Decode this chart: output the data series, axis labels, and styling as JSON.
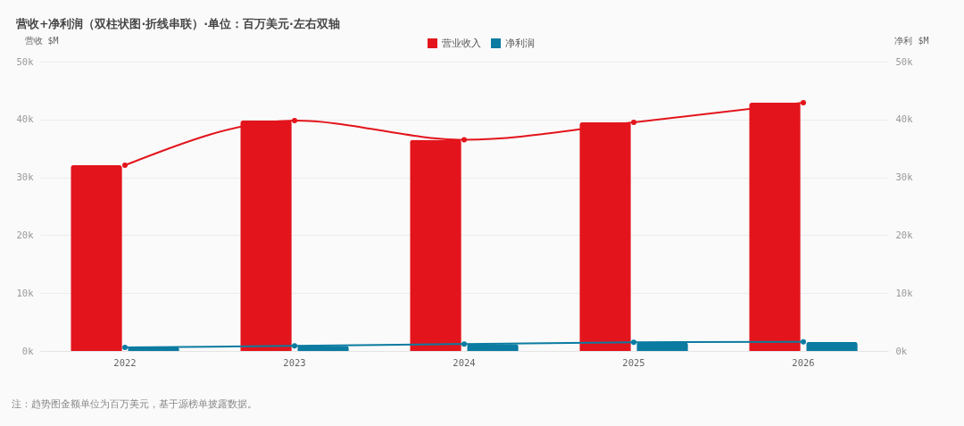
{
  "chart_data": {
    "type": "bar",
    "title": "营收+净利润（双柱状图·折线串联）·单位：百万美元·左右双轴",
    "ylabel": "营收 $M",
    "y2label": "净利 $M",
    "annotations": [
      "注：趋势图金额单位为百万美元，基于源榜单披露数据。"
    ],
    "categories": [
      "2022",
      "2023",
      "2024",
      "2025",
      "2026"
    ],
    "series": [
      {
        "name": "营业收入",
        "color": "#e3141b",
        "values": [
          32100,
          39800,
          36500,
          39500,
          42900
        ]
      },
      {
        "name": "净利润",
        "color": "#0b7ba1",
        "axis": "y2",
        "values": [
          600,
          900,
          1200,
          1500,
          1600
        ]
      },
      {
        "type": "line",
        "color": "#e3141b",
        "values": [
          32100,
          39800,
          36500,
          39500,
          42900
        ]
      },
      {
        "type": "line",
        "color": "#0b7ba1",
        "axis": "y2",
        "values": [
          600,
          900,
          1200,
          1500,
          1600
        ]
      }
    ],
    "ylim": [
      0,
      50000
    ],
    "yticks": [
      {
        "value": 0,
        "label": "0k"
      },
      {
        "value": 10000,
        "label": "10k"
      },
      {
        "value": 20000,
        "label": "20k"
      },
      {
        "value": 30000,
        "label": "30k"
      },
      {
        "value": 40000,
        "label": "40k"
      },
      {
        "value": 50000,
        "label": "50k"
      }
    ],
    "y2lim": [
      0,
      50000
    ],
    "y2ticks": [
      {
        "value": 0,
        "label": "0k"
      },
      {
        "value": 10000,
        "label": "10k"
      },
      {
        "value": 20000,
        "label": "20k"
      },
      {
        "value": 30000,
        "label": "30k"
      },
      {
        "value": 40000,
        "label": "40k"
      },
      {
        "value": 50000,
        "label": "50k"
      }
    ],
    "grid": "y",
    "legend": "top",
    "marker": "circle",
    "line_style": "solid"
  }
}
